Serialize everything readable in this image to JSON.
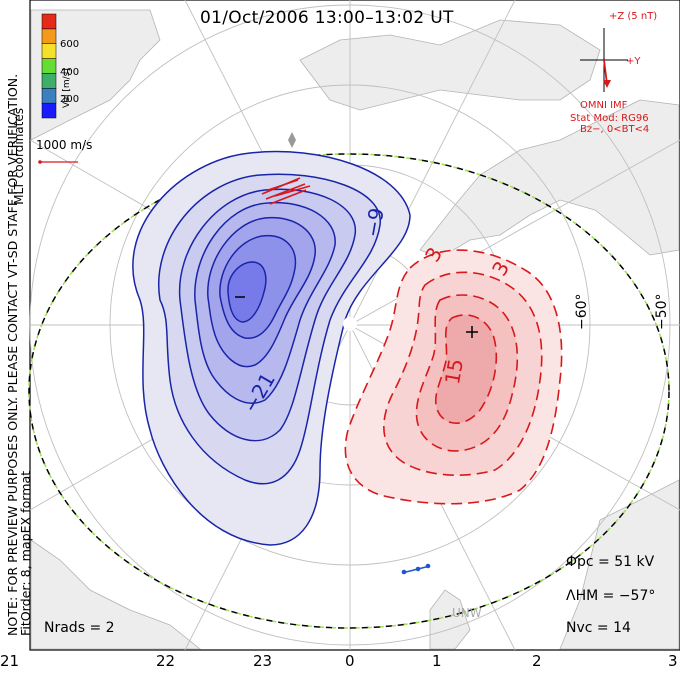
{
  "title": "01/Oct/2006 13:00–13:02 UT",
  "coordinates": "MLT coordinates",
  "colorbar": {
    "unit": "Vel [m/s]",
    "ticks": [
      "600",
      "400",
      "200"
    ],
    "colors": [
      "#1a1aff",
      "#3a7fc0",
      "#3fae6a",
      "#66dd33",
      "#f5e12a",
      "#f39a1b",
      "#e52a1a"
    ]
  },
  "vector_scale": "1000 m/s",
  "watermark": "NOTE: FOR PREVIEW PURPOSES ONLY. PLEASE CONTACT VT-SD STAFF FOR VERIFICATION.",
  "fit_info": "FitOrder: 8, mapEX format",
  "imf": {
    "z_label": "+Z (5 nT)",
    "y_label": "+Y",
    "source": "OMNI IMF",
    "model": "Stat Mod: RG96",
    "condition": "Bz−, 0<BT<4"
  },
  "lat_labels": [
    "−60°",
    "−50°"
  ],
  "mlt_labels": [
    "21",
    "22",
    "23",
    "0",
    "1",
    "2",
    "3"
  ],
  "contours": {
    "negative_labels": [
      "−9",
      "−21"
    ],
    "positive_labels": [
      "3",
      "3",
      "15"
    ],
    "min_marker": "−",
    "max_marker": "+",
    "line_colors": {
      "negative": "#1a24a8",
      "positive": "#d8191c"
    }
  },
  "stats": {
    "phi_pc": "Φpc = 51 kV",
    "lambda_hm": "ΛHM = −57°",
    "n_vc": "Nvc = 14",
    "n_rads": "Nrads = 2"
  },
  "station": "UNW"
}
